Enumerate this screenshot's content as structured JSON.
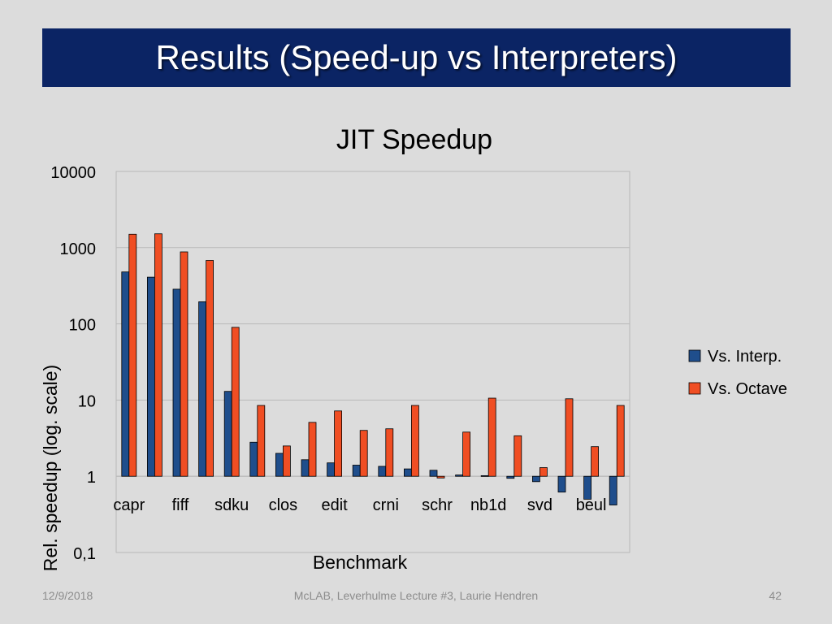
{
  "slide": {
    "title": "Results (Speed-up vs Interpreters)",
    "footer_date": "12/9/2018",
    "footer_center": "McLAB, Leverhulme Lecture #3, Laurie Hendren",
    "page_number": "42"
  },
  "colors": {
    "title_bar": "#0b2464",
    "series_interp": "#1f4e8c",
    "series_octave": "#f04e23",
    "background": "#dcdcdc"
  },
  "chart_data": {
    "type": "bar",
    "title": "JIT Speedup",
    "xlabel": "Benchmark",
    "ylabel": "Rel. speedup (log. scale)",
    "y_scale": "log",
    "ylim": [
      0.1,
      10000
    ],
    "y_ticks": [
      "0,1",
      "1",
      "10",
      "100",
      "1000",
      "10000"
    ],
    "baseline": 1,
    "grid": "horizontal",
    "legend_position": "right",
    "categories": [
      "capr",
      "",
      "fiff",
      "",
      "sdku",
      "",
      "clos",
      "",
      "edit",
      "",
      "crni",
      "",
      "schr",
      "",
      "nb1d",
      "",
      "svd",
      "",
      "beul",
      ""
    ],
    "series": [
      {
        "name": "Vs. Interp.",
        "values": [
          480,
          410,
          285,
          195,
          13,
          2.8,
          2.0,
          1.65,
          1.5,
          1.4,
          1.35,
          1.25,
          1.2,
          1.04,
          1.02,
          0.94,
          0.85,
          0.62,
          0.5,
          0.42
        ]
      },
      {
        "name": "Vs. Octave",
        "values": [
          1500,
          1520,
          880,
          680,
          90,
          8.5,
          2.5,
          5.1,
          7.2,
          4.0,
          4.2,
          8.5,
          0.95,
          3.8,
          10.6,
          3.4,
          1.3,
          10.4,
          2.45,
          8.5
        ]
      }
    ]
  }
}
